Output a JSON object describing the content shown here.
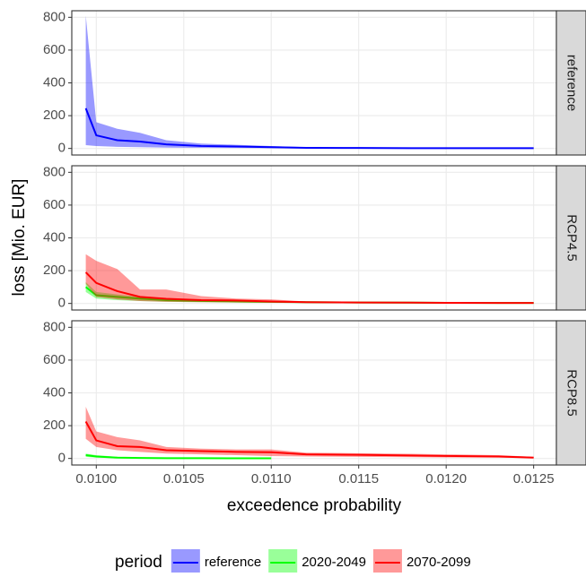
{
  "chart_data": {
    "type": "line",
    "x_label": "exceedence probability",
    "y_label": "loss [Mio. EUR]",
    "legend_title": "period",
    "legend_position": "bottom",
    "grid": true,
    "legend": [
      {
        "name": "reference",
        "color": "#0000ff"
      },
      {
        "name": "2020-2049",
        "color": "#00ff00"
      },
      {
        "name": "2070-2099",
        "color": "#ff0000"
      }
    ],
    "x": [
      0.00994,
      0.01,
      0.01012,
      0.01025,
      0.0104,
      0.0106,
      0.0108,
      0.011,
      0.0112,
      0.0115,
      0.0118,
      0.012,
      0.0123,
      0.0125
    ],
    "xlim": [
      0.00986,
      0.01263
    ],
    "xticks": [
      {
        "value": 0.01,
        "label": "0.0100"
      },
      {
        "value": 0.0105,
        "label": "0.0105"
      },
      {
        "value": 0.011,
        "label": "0.0110"
      },
      {
        "value": 0.0115,
        "label": "0.0115"
      },
      {
        "value": 0.012,
        "label": "0.0120"
      },
      {
        "value": 0.0125,
        "label": "0.0125"
      }
    ],
    "ylim": [
      -40,
      840
    ],
    "yticks": [
      0,
      200,
      400,
      600,
      800
    ],
    "panels": [
      {
        "label": "reference",
        "series": [
          {
            "name": "reference",
            "values": [
              245,
              80,
              50,
              42,
              25,
              15,
              12,
              8,
              4,
              3,
              2,
              2,
              2,
              2
            ],
            "lower": [
              20,
              15,
              10,
              8,
              5,
              4,
              3,
              2,
              1,
              1,
              1,
              1,
              1,
              1
            ],
            "upper": [
              810,
              160,
              120,
              95,
              50,
              30,
              22,
              15,
              8,
              5,
              4,
              3,
              3,
              3
            ]
          }
        ]
      },
      {
        "label": "RCP4.5",
        "series": [
          {
            "name": "2020-2049",
            "values": [
              100,
              50,
              40,
              30,
              20,
              15,
              12,
              10,
              8,
              6,
              5,
              4,
              3,
              3
            ],
            "lower": [
              70,
              30,
              20,
              15,
              10,
              8,
              6,
              5,
              4,
              3,
              3,
              2,
              2,
              2
            ],
            "upper": [
              130,
              70,
              55,
              40,
              30,
              22,
              18,
              14,
              10,
              8,
              6,
              5,
              4,
              4
            ]
          },
          {
            "name": "2070-2099",
            "values": [
              190,
              125,
              75,
              40,
              28,
              20,
              18,
              12,
              8,
              6,
              5,
              4,
              3,
              3
            ],
            "lower": [
              120,
              40,
              25,
              15,
              10,
              8,
              6,
              4,
              3,
              2,
              2,
              2,
              1,
              1
            ],
            "upper": [
              300,
              260,
              210,
              85,
              85,
              45,
              30,
              25,
              12,
              8,
              6,
              5,
              4,
              4
            ]
          }
        ]
      },
      {
        "label": "RCP8.5",
        "series": [
          {
            "name": "2020-2049",
            "values": [
              20,
              12,
              5,
              3,
              2,
              2,
              1,
              1,
              null,
              null,
              null,
              null,
              null,
              null
            ],
            "lower": [
              10,
              5,
              2,
              1,
              0,
              0,
              0,
              0,
              null,
              null,
              null,
              null,
              null,
              null
            ],
            "upper": [
              30,
              20,
              10,
              6,
              4,
              3,
              2,
              2,
              null,
              null,
              null,
              null,
              null,
              null
            ]
          },
          {
            "name": "2070-2099",
            "values": [
              225,
              110,
              75,
              70,
              50,
              45,
              40,
              38,
              25,
              22,
              18,
              15,
              12,
              5
            ],
            "lower": [
              120,
              70,
              50,
              40,
              30,
              25,
              20,
              15,
              12,
              10,
              8,
              6,
              5,
              3
            ],
            "upper": [
              315,
              165,
              130,
              110,
              70,
              60,
              55,
              55,
              35,
              32,
              28,
              25,
              20,
              10
            ]
          }
        ]
      }
    ]
  }
}
